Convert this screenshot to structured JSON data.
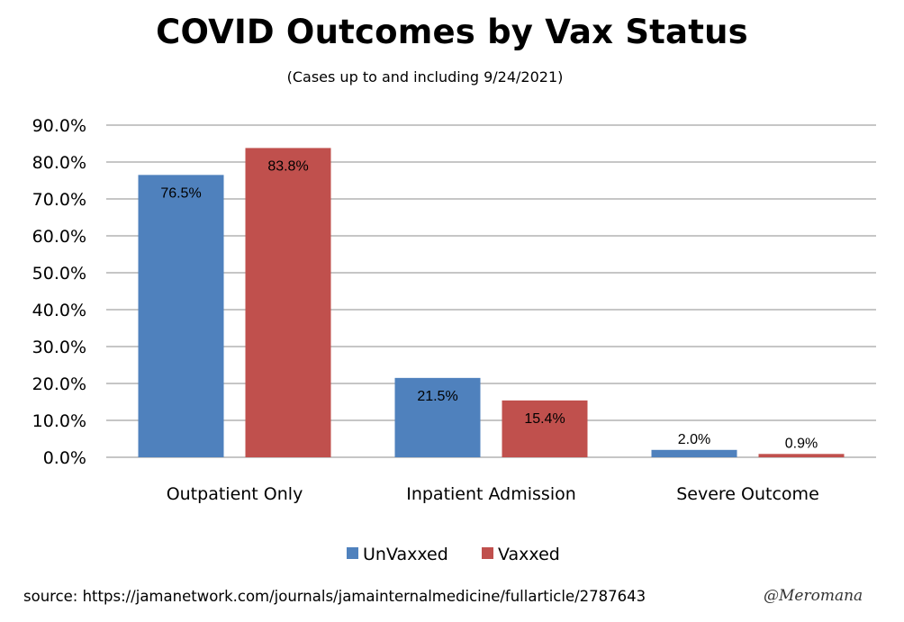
{
  "title": "COVID Outcomes by Vax Status",
  "subtitle": "(Cases up to and including 9/24/2021)",
  "source": "source: https://jamanetwork.com/journals/jamainternalmedicine/fullarticle/2787643",
  "signature": "@Meromana",
  "colors": {
    "unvaxxed": "#4f81bd",
    "vaxxed": "#c0504d",
    "grid": "#8c8c8c"
  },
  "chart_data": {
    "type": "bar",
    "categories": [
      "Outpatient Only",
      "Inpatient Admission",
      "Severe Outcome"
    ],
    "series": [
      {
        "name": "UnVaxxed",
        "values": [
          76.5,
          21.5,
          2.0
        ],
        "labels": [
          "76.5%",
          "21.5%",
          "2.0%"
        ]
      },
      {
        "name": "Vaxxed",
        "values": [
          83.8,
          15.4,
          0.9
        ],
        "labels": [
          "83.8%",
          "15.4%",
          "0.9%"
        ]
      }
    ],
    "ylim": [
      0,
      90
    ],
    "yticks": [
      "0.0%",
      "10.0%",
      "20.0%",
      "30.0%",
      "40.0%",
      "50.0%",
      "60.0%",
      "70.0%",
      "80.0%",
      "90.0%"
    ],
    "grid": true,
    "legend_position": "bottom"
  }
}
